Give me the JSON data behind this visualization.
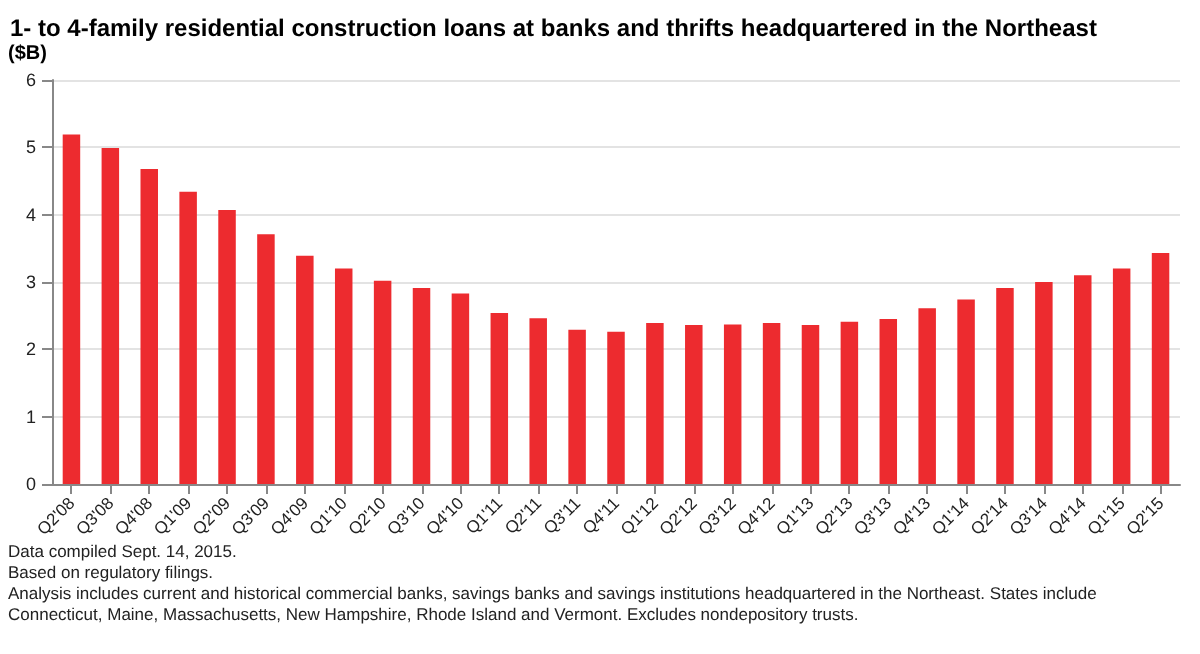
{
  "chart_data": {
    "type": "bar",
    "title": "1- to 4-family residential construction loans at banks and thrifts headquartered in the Northeast",
    "ylabel": "($B)",
    "categories": [
      "Q2'08",
      "Q3'08",
      "Q4'08",
      "Q1'09",
      "Q2'09",
      "Q3'09",
      "Q4'09",
      "Q1'10",
      "Q2'10",
      "Q3'10",
      "Q4'10",
      "Q1'11",
      "Q2'11",
      "Q3'11",
      "Q4'11",
      "Q1'12",
      "Q2'12",
      "Q3'12",
      "Q4'12",
      "Q1'13",
      "Q2'13",
      "Q3'13",
      "Q4'13",
      "Q1'14",
      "Q2'14",
      "Q3'14",
      "Q4'14",
      "Q1'15",
      "Q2'15"
    ],
    "values": [
      5.19,
      4.99,
      4.68,
      4.34,
      4.07,
      3.71,
      3.39,
      3.2,
      3.02,
      2.91,
      2.83,
      2.54,
      2.46,
      2.29,
      2.26,
      2.39,
      2.36,
      2.37,
      2.39,
      2.36,
      2.41,
      2.45,
      2.61,
      2.74,
      2.91,
      3.0,
      3.1,
      3.2,
      3.43
    ],
    "color": "#ed2b2f",
    "ylim": [
      0,
      6
    ],
    "yticks": [
      0,
      1,
      2,
      3,
      4,
      5,
      6
    ],
    "grid": "y",
    "annotations": [
      "Data compiled Sept. 14, 2015.",
      "Based on regulatory filings.",
      "Analysis includes current and historical commercial banks, savings banks and savings institutions headquartered in the Northeast. States include Connecticut, Maine, Massachusetts, New Hampshire, Rhode Island and Vermont. Excludes nondepository trusts."
    ]
  }
}
